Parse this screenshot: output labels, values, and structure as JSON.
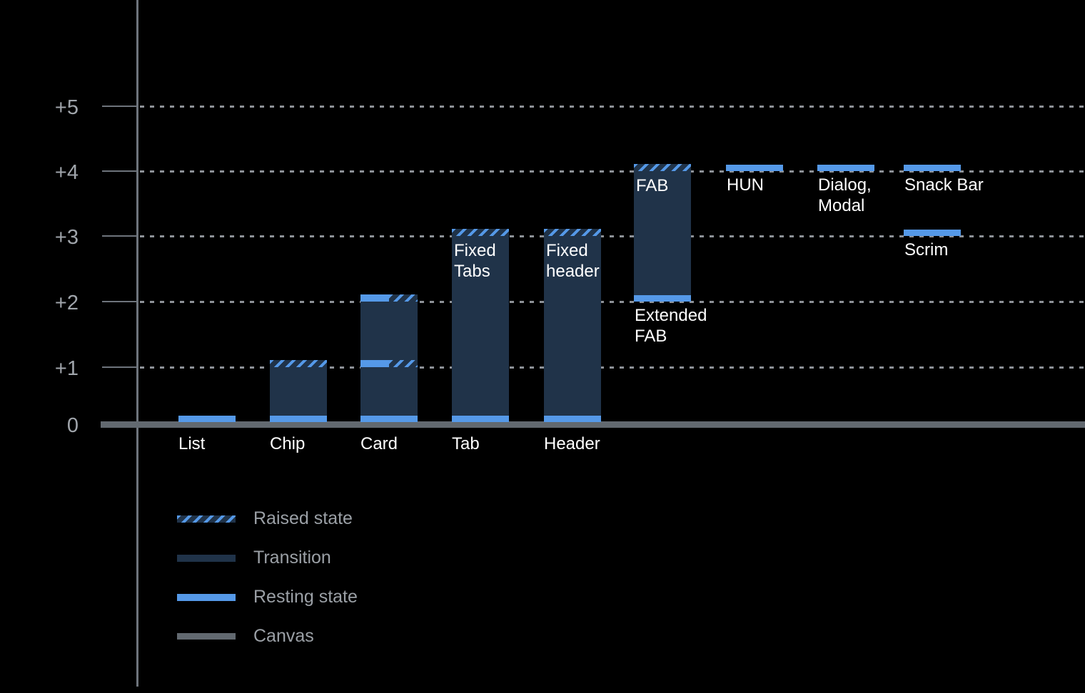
{
  "chart_data": {
    "type": "bar",
    "title": "",
    "xlabel": "",
    "ylabel": "",
    "ylim": [
      0,
      5
    ],
    "grid": {
      "style": "dotted-horizontal",
      "levels": [
        1,
        2,
        3,
        4,
        5
      ]
    },
    "legend_position": "bottom-left",
    "y_axis": {
      "ticks": [
        {
          "label": "+5",
          "level": 5
        },
        {
          "label": "+4",
          "level": 4
        },
        {
          "label": "+3",
          "level": 3
        },
        {
          "label": "+2",
          "level": 2
        },
        {
          "label": "+1",
          "level": 1
        },
        {
          "label": "0",
          "level": 0
        }
      ]
    },
    "baseline": {
      "name": "Canvas",
      "level": 0
    },
    "bars": [
      {
        "name": "List",
        "col": 0,
        "segments": [
          {
            "type": "resting",
            "level": 0
          }
        ],
        "labels": [
          {
            "lines": [
              "List"
            ],
            "placement": "below-canvas"
          }
        ]
      },
      {
        "name": "Chip",
        "col": 1,
        "segments": [
          {
            "type": "resting",
            "level": 0
          },
          {
            "type": "transition",
            "from": 0,
            "to": 1
          },
          {
            "type": "raised",
            "level": 1
          }
        ],
        "labels": [
          {
            "lines": [
              "Chip"
            ],
            "placement": "below-canvas"
          }
        ]
      },
      {
        "name": "Card",
        "col": 2,
        "segments": [
          {
            "type": "resting",
            "level": 0
          },
          {
            "type": "transition",
            "from": 0,
            "to": 1
          },
          {
            "type": "resting-raised",
            "level": 1
          },
          {
            "type": "transition",
            "from": 1,
            "to": 2
          },
          {
            "type": "resting-raised",
            "level": 2
          }
        ],
        "labels": [
          {
            "lines": [
              "Card"
            ],
            "placement": "below-canvas"
          }
        ]
      },
      {
        "name": "Tab",
        "col": 3,
        "segments": [
          {
            "type": "resting",
            "level": 0
          },
          {
            "type": "transition",
            "from": 0,
            "to": 3
          },
          {
            "type": "raised",
            "level": 3
          }
        ],
        "labels": [
          {
            "lines": [
              "Tab"
            ],
            "placement": "below-canvas"
          },
          {
            "lines": [
              "Fixed",
              "Tabs"
            ],
            "placement": "inside-top",
            "level": 3
          }
        ]
      },
      {
        "name": "Header",
        "col": 4,
        "segments": [
          {
            "type": "resting",
            "level": 0
          },
          {
            "type": "transition",
            "from": 0,
            "to": 3
          },
          {
            "type": "raised",
            "level": 3
          }
        ],
        "labels": [
          {
            "lines": [
              "Header"
            ],
            "placement": "below-canvas"
          },
          {
            "lines": [
              "Fixed",
              "header"
            ],
            "placement": "inside-top",
            "level": 3
          }
        ]
      },
      {
        "name": "Extended FAB",
        "col": 5,
        "segments": [
          {
            "type": "resting",
            "level": 2
          },
          {
            "type": "transition",
            "from": 2,
            "to": 4
          },
          {
            "type": "raised",
            "level": 4
          }
        ],
        "labels": [
          {
            "lines": [
              "FAB"
            ],
            "placement": "inside-top",
            "level": 4
          },
          {
            "lines": [
              "Extended",
              "FAB"
            ],
            "placement": "below-level",
            "level": 2
          }
        ]
      },
      {
        "name": "HUN",
        "col": 6,
        "segments": [
          {
            "type": "resting",
            "level": 4
          }
        ],
        "labels": [
          {
            "lines": [
              "HUN"
            ],
            "placement": "below-level",
            "level": 4
          }
        ]
      },
      {
        "name": "Dialog, Modal",
        "col": 7,
        "segments": [
          {
            "type": "resting",
            "level": 4
          }
        ],
        "labels": [
          {
            "lines": [
              "Dialog,",
              "Modal"
            ],
            "placement": "below-level",
            "level": 4
          }
        ]
      },
      {
        "name": "Snack Bar",
        "col": 8,
        "segments": [
          {
            "type": "resting",
            "level": 4
          }
        ],
        "labels": [
          {
            "lines": [
              "Snack Bar"
            ],
            "placement": "below-level",
            "level": 4
          }
        ]
      },
      {
        "name": "Scrim",
        "col": 8,
        "segments": [
          {
            "type": "resting",
            "level": 3
          }
        ],
        "labels": [
          {
            "lines": [
              "Scrim"
            ],
            "placement": "below-level",
            "level": 3
          }
        ]
      }
    ],
    "legend": [
      {
        "swatch": "raised",
        "label": "Raised state"
      },
      {
        "swatch": "transition",
        "label": "Transition"
      },
      {
        "swatch": "resting",
        "label": "Resting state"
      },
      {
        "swatch": "canvas",
        "label": "Canvas"
      }
    ],
    "colors": {
      "background": "#000000",
      "resting": "#5599E8",
      "transition": "#203349",
      "canvas": "#626970",
      "grid": "#8E9298",
      "axis": "#6E747C",
      "tick_label": "#A0A5AB",
      "bar_label": "#FFFFFF",
      "legend_label": "#9BA0A6"
    }
  }
}
